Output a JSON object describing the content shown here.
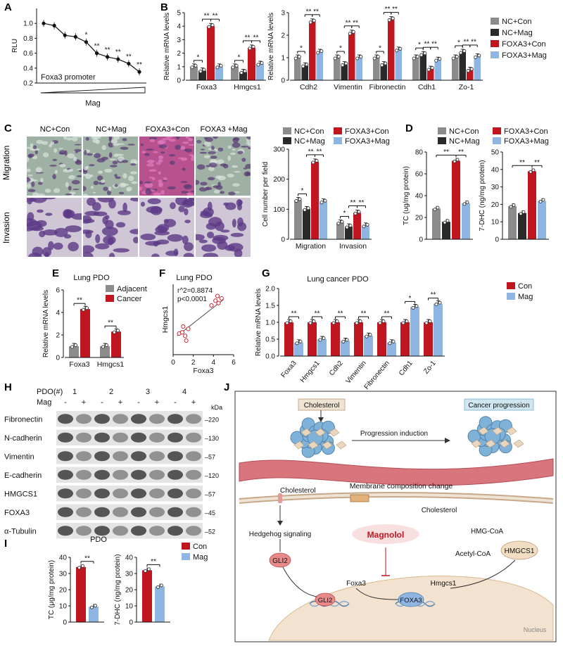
{
  "colors": {
    "nc_con": "#8c8c8c",
    "nc_mag": "#2a2a2a",
    "foxa3_con": "#c0161f",
    "foxa3_mag": "#8fb6e3",
    "adjacent": "#8c8c8c",
    "cancer": "#c0161f",
    "con": "#c0161f",
    "mag": "#8fb6e3",
    "migration_stain": "#c560a8",
    "invasion_stain": "#6a4c8c",
    "cholesterol_box": "#efe3d3",
    "progression_box": "#cfe6f0",
    "nucleus": "#f3e2cf",
    "tumor": "#7fb2d9",
    "vessel": "#d9757c"
  },
  "panels": {
    "A": "A",
    "B": "B",
    "C": "C",
    "D": "D",
    "E": "E",
    "F": "F",
    "G": "G",
    "H": "H",
    "I": "I",
    "J": "J"
  },
  "groups4": [
    "NC+Con",
    "NC+Mag",
    "FOXA3+Con",
    "FOXA3+Mag"
  ],
  "chart_data": [
    {
      "id": "A",
      "type": "line",
      "ylabel": "RLU",
      "xlabel": "Mag",
      "annotation": "Foxa3 promoter",
      "ylim": [
        0.2,
        1.2
      ],
      "yticks": [
        "0.2",
        "0.4",
        "0.6",
        "0.8",
        "1.0"
      ],
      "y": [
        1.0,
        0.97,
        0.84,
        0.82,
        0.75,
        0.6,
        0.55,
        0.52,
        0.46,
        0.35
      ],
      "sig": [
        "",
        "",
        "",
        "",
        "*",
        "**",
        "**",
        "**",
        "**",
        "**"
      ]
    },
    {
      "id": "B1",
      "type": "bar",
      "ylabel": "Relative mRNA levels",
      "ylim": [
        0,
        5
      ],
      "yticks": [
        "0",
        "1",
        "2",
        "3",
        "4",
        "5"
      ],
      "categories": [
        "Foxa3",
        "Hmgcs1"
      ],
      "series": [
        {
          "name": "NC+Con",
          "values": [
            1.0,
            1.0
          ]
        },
        {
          "name": "NC+Mag",
          "values": [
            0.7,
            0.6
          ]
        },
        {
          "name": "FOXA3+Con",
          "values": [
            4.0,
            2.4
          ]
        },
        {
          "name": "FOXA3+Mag",
          "values": [
            1.0,
            1.2
          ]
        }
      ],
      "sig": [
        [
          "*",
          "**",
          "**"
        ],
        [
          "*",
          "**",
          "**"
        ]
      ]
    },
    {
      "id": "B2",
      "type": "bar",
      "ylabel": "Relative mRNA levels",
      "ylim": [
        0,
        3
      ],
      "yticks": [
        "0",
        "1",
        "2",
        "3"
      ],
      "categories": [
        "Cdh2",
        "Vimentin",
        "Fibronectin",
        "Cdh1",
        "Zo-1"
      ],
      "series": [
        {
          "name": "NC+Con",
          "values": [
            1.0,
            1.0,
            1.0,
            1.0,
            1.0
          ]
        },
        {
          "name": "NC+Mag",
          "values": [
            0.65,
            0.7,
            0.7,
            1.15,
            1.25
          ]
        },
        {
          "name": "FOXA3+Con",
          "values": [
            2.6,
            2.1,
            2.7,
            0.5,
            0.45
          ]
        },
        {
          "name": "FOXA3+Mag",
          "values": [
            1.25,
            1.0,
            1.35,
            0.9,
            1.05
          ]
        }
      ],
      "sig": [
        [
          "*",
          "**",
          "**"
        ],
        [
          "*",
          "**",
          "**"
        ],
        [
          "*",
          "**",
          "**"
        ],
        [
          "*",
          "**",
          "**"
        ],
        [
          "*",
          "**",
          "**"
        ]
      ]
    },
    {
      "id": "C",
      "type": "bar",
      "ylabel": "Cell number per field",
      "ylim": [
        0,
        300
      ],
      "yticks": [
        "0",
        "100",
        "200",
        "300"
      ],
      "categories": [
        "Migration",
        "Invasion"
      ],
      "series": [
        {
          "name": "NC+Con",
          "values": [
            130,
            55
          ]
        },
        {
          "name": "NC+Mag",
          "values": [
            100,
            42
          ]
        },
        {
          "name": "FOXA3+Con",
          "values": [
            258,
            88
          ]
        },
        {
          "name": "FOXA3+Mag",
          "values": [
            125,
            45
          ]
        }
      ],
      "sig": [
        [
          "*",
          "**",
          "**"
        ],
        [
          "*",
          "**",
          "**"
        ]
      ]
    },
    {
      "id": "D1",
      "type": "bar",
      "ylabel": "TC (ug/mg protein)",
      "ylim": [
        0,
        80
      ],
      "yticks": [
        "0",
        "20",
        "40",
        "60",
        "80"
      ],
      "series": [
        {
          "name": "NC+Con",
          "values": [
            28
          ]
        },
        {
          "name": "NC+Mag",
          "values": [
            16
          ]
        },
        {
          "name": "FOXA3+Con",
          "values": [
            72
          ]
        },
        {
          "name": "FOXA3+Mag",
          "values": [
            33
          ]
        }
      ],
      "sig": [
        "**",
        "**"
      ]
    },
    {
      "id": "D2",
      "type": "bar",
      "ylabel": "7-DHC (ng/mg protein)",
      "ylim": [
        0,
        50
      ],
      "yticks": [
        "0",
        "10",
        "20",
        "30",
        "40",
        "50"
      ],
      "series": [
        {
          "name": "NC+Con",
          "values": [
            19
          ]
        },
        {
          "name": "NC+Mag",
          "values": [
            15
          ]
        },
        {
          "name": "FOXA3+Con",
          "values": [
            39
          ]
        },
        {
          "name": "FOXA3+Mag",
          "values": [
            22
          ]
        }
      ],
      "sig": [
        "**",
        "**"
      ]
    },
    {
      "id": "E",
      "type": "bar",
      "title": "Lung PDO",
      "ylabel": "Relative mRNA levels",
      "ylim": [
        0,
        6
      ],
      "yticks": [
        "0",
        "2",
        "4",
        "6"
      ],
      "categories": [
        "Foxa3",
        "Hmgcs1"
      ],
      "series": [
        {
          "name": "Adjacent",
          "values": [
            1.0,
            1.0
          ]
        },
        {
          "name": "Cancer",
          "values": [
            4.3,
            2.3
          ]
        }
      ],
      "sig": [
        "**",
        "**"
      ]
    },
    {
      "id": "F",
      "type": "scatter",
      "title": "Lung PDO",
      "xlabel": "Foxa3",
      "ylabel": "Hmgcs1",
      "annotation": [
        "r^2=0.8874",
        "p<0.0001"
      ],
      "xlim": [
        0,
        6
      ],
      "ylim": [
        0,
        3
      ],
      "xticks": [
        "0",
        "2",
        "4",
        "6"
      ],
      "points": [
        [
          0.6,
          0.9
        ],
        [
          0.9,
          0.95
        ],
        [
          1.0,
          1.2
        ],
        [
          1.2,
          0.8
        ],
        [
          1.3,
          0.6
        ],
        [
          1.5,
          1.1
        ],
        [
          3.8,
          2.1
        ],
        [
          4.2,
          2.3
        ],
        [
          4.5,
          2.2
        ],
        [
          4.8,
          2.4
        ],
        [
          4.4,
          2.5
        ]
      ],
      "fit": [
        [
          0.4,
          0.8
        ],
        [
          5.0,
          2.35
        ]
      ]
    },
    {
      "id": "G",
      "type": "bar",
      "title": "Lung cancer PDO",
      "ylabel": "Relative mRNA levels",
      "ylim": [
        0,
        2
      ],
      "yticks": [
        "0.0",
        "0.5",
        "1.0",
        "1.5",
        "2.0"
      ],
      "categories": [
        "Foxa3",
        "Hmgcs1",
        "Cdh2",
        "Vimentin",
        "Fibronectin",
        "Cdh1",
        "Zo-1"
      ],
      "series": [
        {
          "name": "Con",
          "values": [
            1.0,
            1.0,
            1.0,
            1.0,
            1.0,
            1.0,
            1.0
          ]
        },
        {
          "name": "Mag",
          "values": [
            0.4,
            0.5,
            0.45,
            0.6,
            0.4,
            1.45,
            1.55
          ]
        }
      ],
      "sig": [
        "**",
        "**",
        "**",
        "**",
        "**",
        "*",
        "**"
      ]
    },
    {
      "id": "I1",
      "type": "bar",
      "title": "PDO",
      "ylabel": "TC (μg/mg protein)",
      "ylim": [
        0,
        40
      ],
      "yticks": [
        "0",
        "10",
        "20",
        "30",
        "40"
      ],
      "series": [
        {
          "name": "Con",
          "values": [
            34
          ]
        },
        {
          "name": "Mag",
          "values": [
            9.5
          ]
        }
      ],
      "sig": "**"
    },
    {
      "id": "I2",
      "type": "bar",
      "ylabel": "7-DHC (ng/mg protein)",
      "ylim": [
        0,
        40
      ],
      "yticks": [
        "0",
        "10",
        "20",
        "30",
        "40"
      ],
      "series": [
        {
          "name": "Con",
          "values": [
            32
          ]
        },
        {
          "name": "Mag",
          "values": [
            22
          ]
        }
      ],
      "sig": "**"
    }
  ],
  "panel_c": {
    "columns": [
      "NC+Con",
      "NC+Mag",
      "FOXA3+Con",
      "FOXA3 +Mag"
    ],
    "rows": [
      "Migration",
      "Invasion"
    ]
  },
  "legend_g": [
    "Con",
    "Mag"
  ],
  "legend_e": [
    "Adjacent",
    "Cancer"
  ],
  "legend_i": [
    "Con",
    "Mag"
  ],
  "blot": {
    "header": "PDO(#)",
    "pdo_ids": [
      "1",
      "2",
      "3",
      "4"
    ],
    "mag_label": "Mag",
    "mag_signs": [
      "-",
      "+",
      "-",
      "+",
      "-",
      "+",
      "-",
      "+"
    ],
    "kda": "kDa",
    "proteins": [
      "Fibronectin",
      "N-cadherin",
      "Vimentin",
      "E-cadherin",
      "HMGCS1",
      "FOXA3",
      "α-Tubulin"
    ],
    "sizes": [
      "220",
      "130",
      "57",
      "120",
      "57",
      "45",
      "52"
    ]
  },
  "diagram": {
    "cholesterol": "Cholesterol",
    "cancer_progression": "Cancer progression",
    "progression_induction": "Progression induction",
    "membrane_change": "Membrane composition change",
    "cholesterol_left": "Cholesterol",
    "cholesterol_right": "Cholesterol",
    "hedgehog": "Hedgehog signaling",
    "magnolol": "Magnolol",
    "hmg_coa": "HMG-CoA",
    "acetyl_coa": "Acetyl-CoA",
    "hmgcs1_node": "HMGCS1",
    "gli2_top": "GLI2",
    "gli2_dna": "GLI2",
    "foxa3_gene": "Foxa3",
    "foxa3_protein": "FOXA3",
    "hmgcs1_gene": "Hmgcs1",
    "nucleus": "Nucleus"
  }
}
